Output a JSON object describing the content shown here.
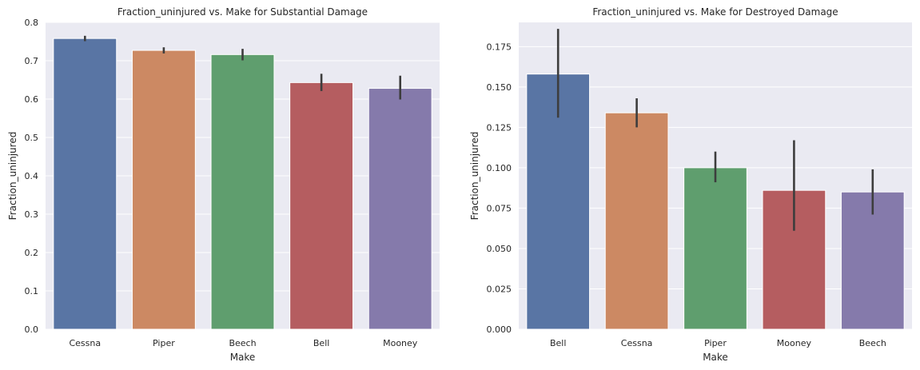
{
  "chart_data": [
    {
      "type": "bar",
      "title": "Fraction_uninjured vs. Make for Substantial Damage",
      "xlabel": "Make",
      "ylabel": "Fraction_uninjured",
      "categories": [
        "Cessna",
        "Piper",
        "Beech",
        "Bell",
        "Mooney"
      ],
      "values": [
        0.758,
        0.727,
        0.716,
        0.643,
        0.628
      ],
      "error_low": [
        0.751,
        0.719,
        0.701,
        0.621,
        0.599
      ],
      "error_high": [
        0.765,
        0.735,
        0.731,
        0.666,
        0.661
      ],
      "ylim": [
        0,
        0.8
      ],
      "yticks": [
        "0.0",
        "0.1",
        "0.2",
        "0.3",
        "0.4",
        "0.5",
        "0.6",
        "0.7",
        "0.8"
      ],
      "grid": true,
      "colors": [
        "#5975a4",
        "#cc8963",
        "#5f9e6e",
        "#b55d60",
        "#857aab"
      ]
    },
    {
      "type": "bar",
      "title": "Fraction_uninjured vs. Make for Destroyed Damage",
      "xlabel": "Make",
      "ylabel": "Fraction_uninjured",
      "categories": [
        "Bell",
        "Cessna",
        "Piper",
        "Mooney",
        "Beech"
      ],
      "values": [
        0.158,
        0.134,
        0.1,
        0.086,
        0.085
      ],
      "error_low": [
        0.131,
        0.125,
        0.091,
        0.061,
        0.071
      ],
      "error_high": [
        0.186,
        0.143,
        0.11,
        0.117,
        0.099
      ],
      "ylim": [
        0,
        0.19
      ],
      "yticks": [
        "0.000",
        "0.025",
        "0.050",
        "0.075",
        "0.100",
        "0.125",
        "0.150",
        "0.175"
      ],
      "grid": true,
      "colors": [
        "#5975a4",
        "#cc8963",
        "#5f9e6e",
        "#b55d60",
        "#857aab"
      ]
    }
  ]
}
